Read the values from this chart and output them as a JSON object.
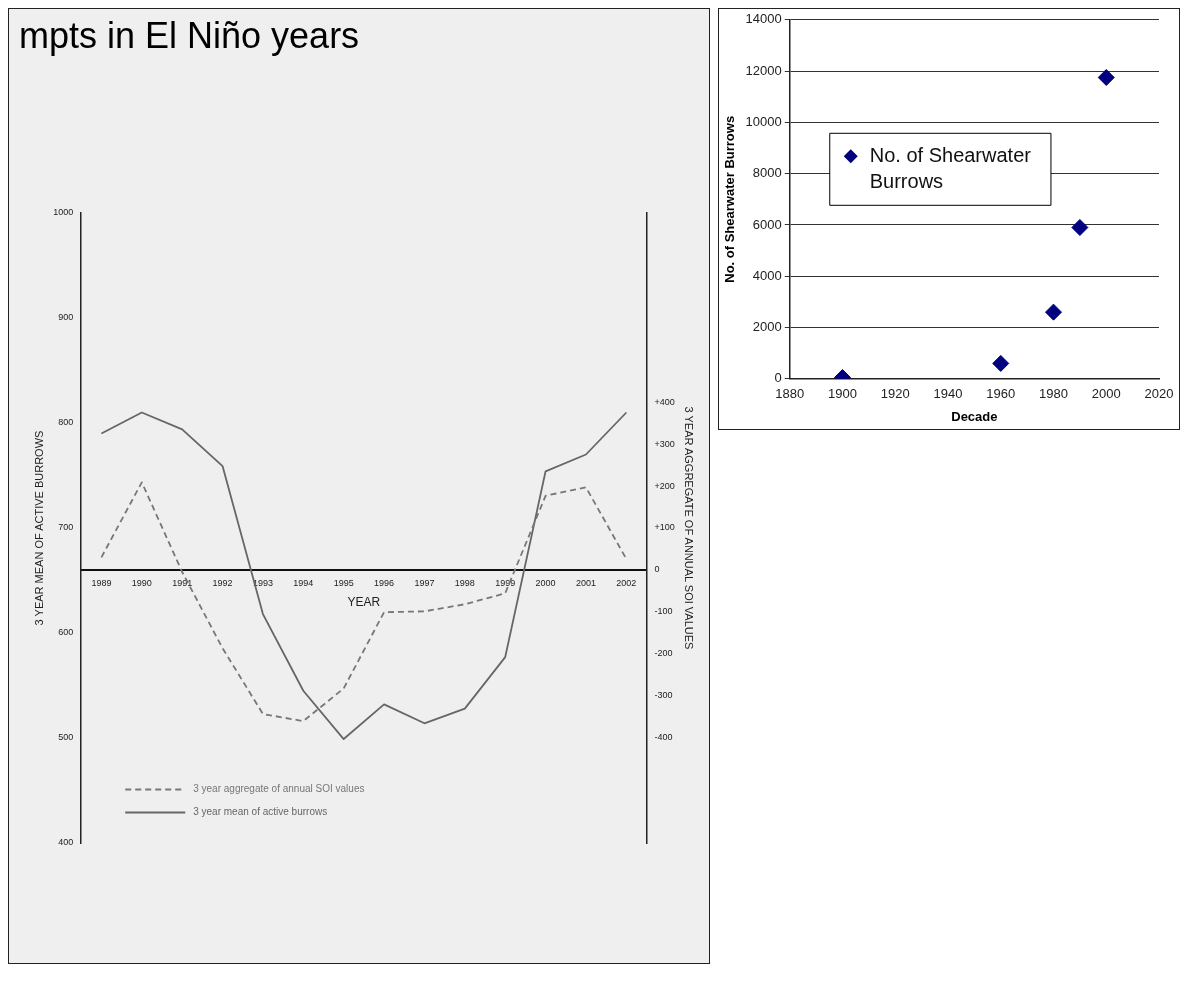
{
  "chart_data": [
    {
      "type": "line",
      "title": "mpts in El Niño years",
      "xlabel": "YEAR",
      "ylabel": "3 YEAR MEAN OF ACTIVE BURROWS",
      "y2label": "3 YEAR AGGREGATE OF ANNUAL SOI VALUES",
      "categories": [
        "1989",
        "1990",
        "1991",
        "1992",
        "1993",
        "1994",
        "1995",
        "1996",
        "1997",
        "1998",
        "1999",
        "2000",
        "2001",
        "2002"
      ],
      "series": [
        {
          "name": "3 year aggregate of annual SOI values",
          "color": "#777777",
          "axis": "y2",
          "line_style": "dashed",
          "values": [
            30,
            209,
            -5,
            -187,
            -344,
            -361,
            -283,
            -101,
            -99,
            -82,
            -56,
            177,
            197,
            26
          ]
        },
        {
          "name": "3 year mean of active burrows",
          "color": "#666666",
          "line_style": "solid",
          "values": [
            790,
            810,
            794,
            759,
            618,
            545,
            499,
            532,
            514,
            528,
            577,
            754,
            770,
            810
          ]
        }
      ],
      "ylim": [
        400,
        1000
      ],
      "yticks": [
        400,
        500,
        600,
        700,
        800,
        900,
        1000
      ],
      "y2lim": [
        -652,
        852
      ],
      "y2ticks": [
        -400,
        -300,
        -200,
        -100,
        0,
        {
          "value": 100,
          "label": "+100"
        },
        {
          "value": 200,
          "label": "+200"
        },
        {
          "value": 300,
          "label": "+300"
        },
        {
          "value": 400,
          "label": "+400"
        }
      ],
      "legend": "bottom left",
      "marker": "none"
    },
    {
      "type": "scatter",
      "xlabel": "Decade",
      "ylabel": "No. of Shearwater Burrows",
      "series": [
        {
          "name": "No. of Shearwater Burrows",
          "color": "#000080",
          "x": [
            1900,
            1960,
            1980,
            1990,
            2000
          ],
          "values": [
            50,
            600,
            2600,
            5900,
            11750
          ]
        }
      ],
      "xlim": [
        1880,
        2020
      ],
      "xticks": [
        1880,
        1900,
        1920,
        1940,
        1960,
        1980,
        2000,
        2020
      ],
      "ylim": [
        0,
        14000
      ],
      "yticks": [
        0,
        2000,
        4000,
        6000,
        8000,
        10000,
        12000,
        14000
      ],
      "grid": "y",
      "legend": "left",
      "marker": "diamond"
    }
  ]
}
